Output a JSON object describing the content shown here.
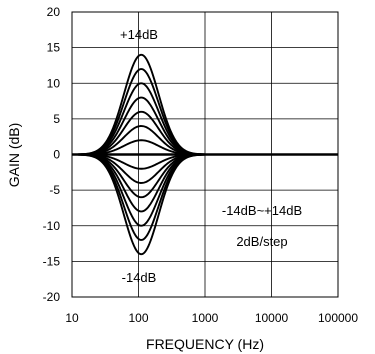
{
  "chart_data": {
    "type": "line",
    "xlabel": "FREQUENCY (Hz)",
    "ylabel": "GAIN (dB)",
    "x_scale": "log",
    "xlim": [
      10,
      100000
    ],
    "ylim": [
      -20,
      20
    ],
    "x_ticks": [
      10,
      100,
      1000,
      10000,
      100000
    ],
    "x_tick_labels": [
      "10",
      "100",
      "1000",
      "10000",
      "100000"
    ],
    "y_ticks": [
      -20,
      -15,
      -10,
      -5,
      0,
      5,
      10,
      15,
      20
    ],
    "y_tick_labels": [
      "-20",
      "-15",
      "-10",
      "-5",
      "0",
      "5",
      "10",
      "15",
      "20"
    ],
    "grid": true,
    "center_frequency_hz": 110,
    "series_peak_gains_db": [
      14,
      12,
      10,
      8,
      6,
      4,
      2,
      -2,
      -4,
      -6,
      -8,
      -10,
      -12,
      -14
    ],
    "line_color": "#000000",
    "annotations": {
      "top": "+14dB",
      "bottom": "-14dB",
      "range": "-14dB~+14dB",
      "step": "2dB/step"
    }
  }
}
